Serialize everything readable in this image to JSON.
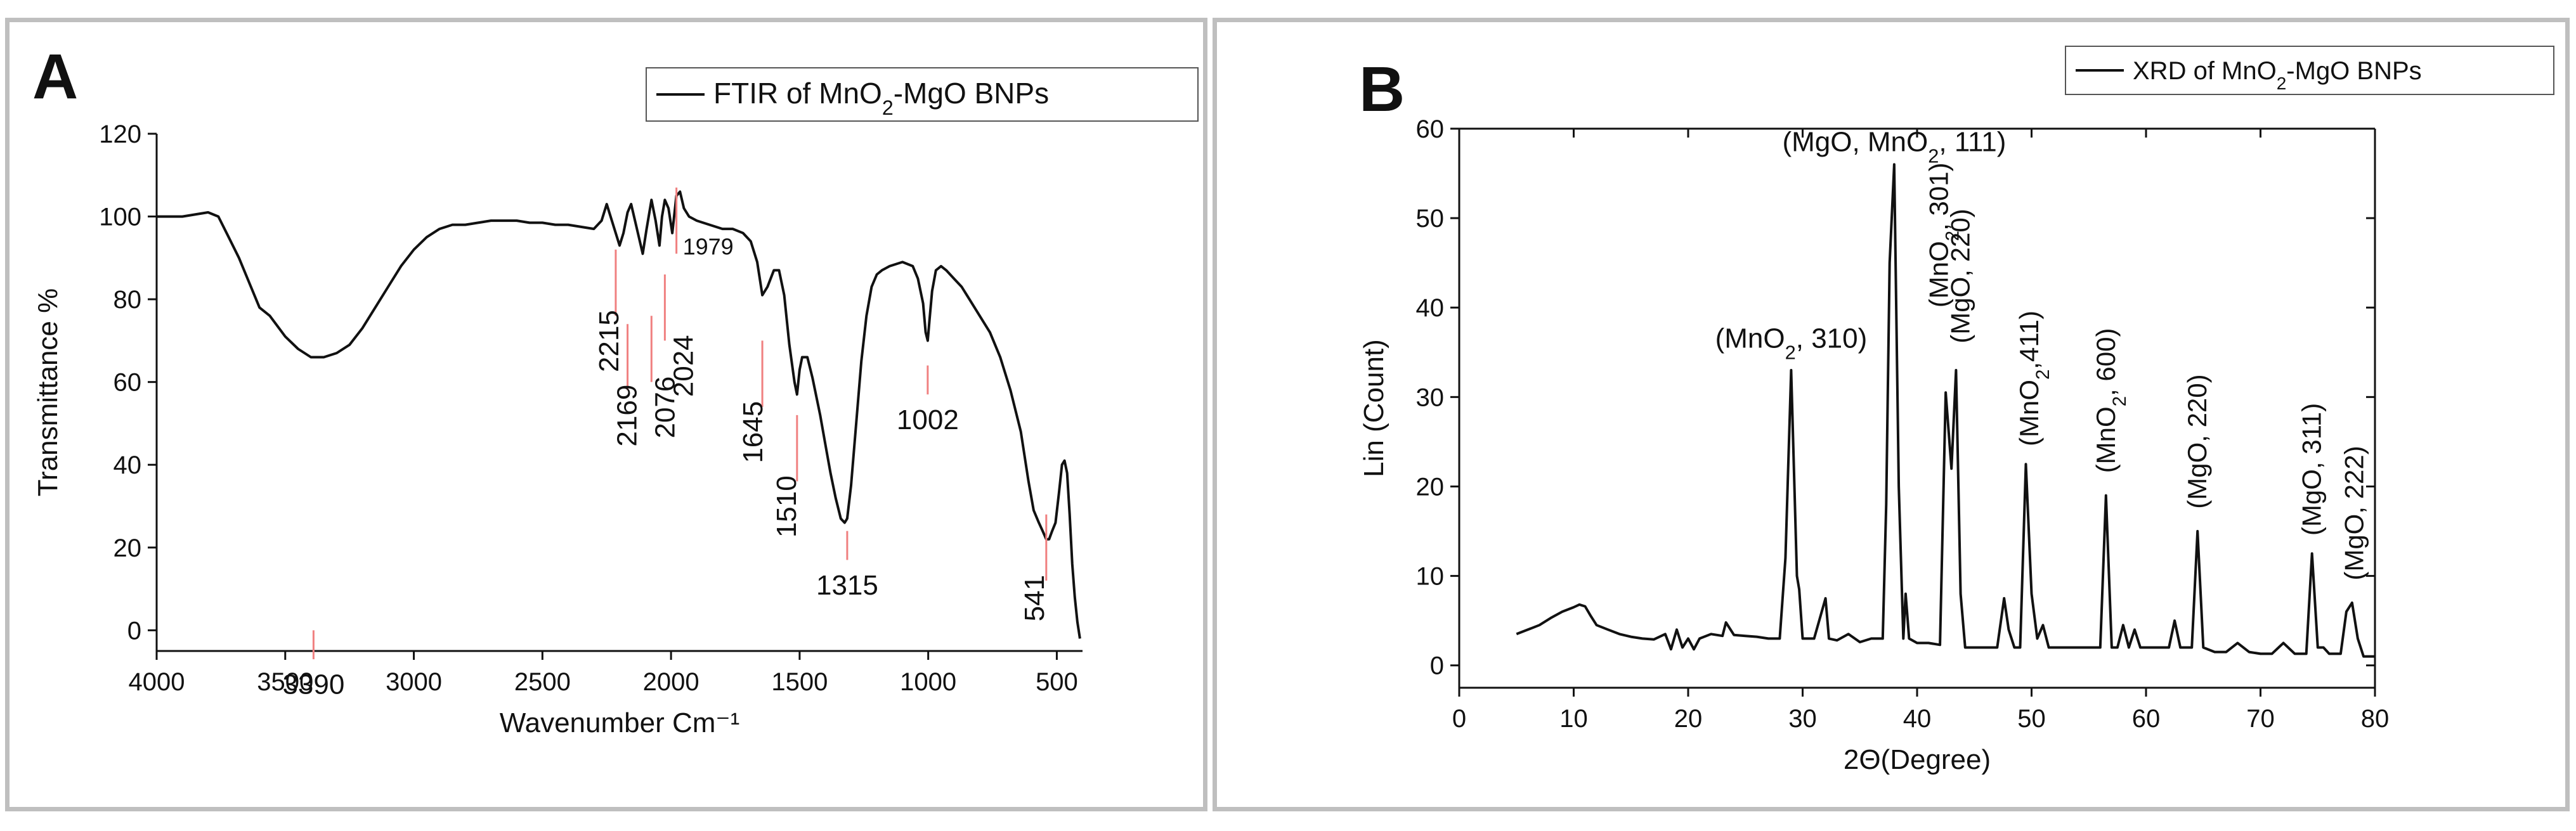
{
  "chart_data": [
    {
      "type": "line",
      "panel_label": "A",
      "title": "",
      "xlabel": "Wavenumber Cm⁻¹",
      "ylabel": "Transmittance %",
      "legend": {
        "label": "FTIR of MnO₂-MgO BNPs",
        "position": "top-right"
      },
      "xlim": [
        4000,
        400
      ],
      "ylim": [
        -5,
        120
      ],
      "x_ticks": [
        4000,
        3500,
        3000,
        2500,
        2000,
        1500,
        1000,
        500
      ],
      "x_tick_labels": [
        "4000",
        "3500",
        "3000",
        "2500",
        "2000",
        "1500",
        "1000",
        "500"
      ],
      "y_ticks": [
        0,
        20,
        40,
        60,
        80,
        100,
        120
      ],
      "y_tick_labels": [
        "0",
        "20",
        "40",
        "60",
        "80",
        "100",
        "120"
      ],
      "series": [
        {
          "name": "FTIR of MnO₂-MgO BNPs",
          "color": "#111111",
          "x": [
            4000,
            3900,
            3800,
            3760,
            3720,
            3680,
            3640,
            3600,
            3560,
            3500,
            3450,
            3400,
            3390,
            3350,
            3300,
            3250,
            3200,
            3150,
            3100,
            3050,
            3000,
            2950,
            2900,
            2850,
            2800,
            2750,
            2700,
            2650,
            2600,
            2550,
            2500,
            2450,
            2400,
            2350,
            2300,
            2270,
            2250,
            2235,
            2215,
            2200,
            2185,
            2169,
            2155,
            2140,
            2125,
            2110,
            2095,
            2076,
            2060,
            2045,
            2035,
            2024,
            2010,
            1995,
            1979,
            1965,
            1950,
            1930,
            1900,
            1850,
            1800,
            1760,
            1720,
            1690,
            1665,
            1645,
            1625,
            1600,
            1580,
            1560,
            1540,
            1520,
            1510,
            1500,
            1490,
            1470,
            1450,
            1420,
            1400,
            1380,
            1360,
            1340,
            1325,
            1315,
            1300,
            1280,
            1260,
            1240,
            1220,
            1200,
            1180,
            1150,
            1100,
            1060,
            1040,
            1020,
            1010,
            1002,
            995,
            985,
            970,
            950,
            930,
            900,
            870,
            840,
            800,
            760,
            720,
            680,
            640,
            610,
            590,
            570,
            555,
            541,
            530,
            518,
            505,
            492,
            480,
            470,
            460,
            450,
            440,
            430,
            420,
            410
          ],
          "y": [
            100,
            100,
            101,
            100,
            95,
            90,
            84,
            78,
            76,
            71,
            68,
            66,
            66,
            66,
            67,
            69,
            73,
            78,
            83,
            88,
            92,
            95,
            97,
            98,
            98,
            98.5,
            99,
            99,
            99,
            98.5,
            98.5,
            98,
            98,
            97.5,
            97,
            99,
            103,
            100,
            96,
            93,
            96,
            101,
            103,
            99,
            95,
            91,
            97,
            104,
            99,
            93,
            100,
            104,
            102,
            96,
            105,
            106,
            102,
            100,
            99,
            98,
            97,
            97,
            96,
            94,
            89,
            81,
            83,
            87,
            87,
            81,
            69,
            60,
            57,
            63,
            66,
            66,
            61,
            52,
            45,
            38,
            32,
            27,
            26,
            27,
            35,
            50,
            65,
            76,
            83,
            86,
            87,
            88,
            89,
            88,
            85,
            79,
            72,
            70,
            75,
            82,
            87,
            88,
            87,
            85,
            83,
            80,
            76,
            72,
            66,
            58,
            48,
            36,
            29,
            26,
            24,
            22,
            22,
            24,
            26,
            33,
            40,
            41,
            38,
            28,
            16,
            8,
            2,
            -2
          ]
        }
      ],
      "annotations": [
        {
          "label": "3390",
          "x": 3390
        },
        {
          "label": "2215",
          "x": 2215
        },
        {
          "label": "2169",
          "x": 2169
        },
        {
          "label": "2076",
          "x": 2076
        },
        {
          "label": "2024",
          "x": 2024
        },
        {
          "label": "1979",
          "x": 1979
        },
        {
          "label": "1645",
          "x": 1645
        },
        {
          "label": "1510",
          "x": 1510
        },
        {
          "label": "1315",
          "x": 1315
        },
        {
          "label": "1002",
          "x": 1002
        },
        {
          "label": "541",
          "x": 541
        }
      ]
    },
    {
      "type": "line",
      "panel_label": "B",
      "title": "",
      "xlabel": "2Θ(Degree)",
      "ylabel": "Lin (Count)",
      "legend": {
        "label": "XRD of MnO₂-MgO BNPs",
        "position": "top-right"
      },
      "xlim": [
        0,
        80
      ],
      "ylim": [
        -2.5,
        60
      ],
      "x_ticks": [
        0,
        10,
        20,
        30,
        40,
        50,
        60,
        70,
        80
      ],
      "x_tick_labels": [
        "0",
        "10",
        "20",
        "30",
        "40",
        "50",
        "60",
        "70",
        "80"
      ],
      "y_ticks": [
        0,
        10,
        20,
        30,
        40,
        50,
        60
      ],
      "y_tick_labels": [
        "0",
        "10",
        "20",
        "30",
        "40",
        "50",
        "60"
      ],
      "series": [
        {
          "name": "XRD of MnO₂-MgO BNPs",
          "color": "#111111",
          "x": [
            5,
            6,
            7,
            8,
            9,
            10,
            10.5,
            11,
            11.5,
            12,
            13,
            14,
            15,
            16,
            17,
            18,
            18.5,
            19,
            19.5,
            20,
            20.5,
            21,
            22,
            23,
            23.3,
            24,
            25,
            26,
            27,
            28,
            28.5,
            29,
            29.5,
            29.7,
            30,
            31,
            32,
            32.3,
            33,
            34,
            35,
            36,
            37,
            37.3,
            37.6,
            38,
            38.4,
            38.8,
            39,
            39.3,
            40,
            41,
            42,
            42.5,
            43,
            43.4,
            43.8,
            44.2,
            45,
            46,
            47,
            47.6,
            48,
            48.5,
            49,
            49.5,
            50,
            50.5,
            51,
            51.5,
            52,
            53,
            54,
            55,
            56,
            56.5,
            57,
            57.5,
            58,
            58.5,
            59,
            59.5,
            60,
            61,
            62,
            62.5,
            63,
            64,
            64.5,
            65,
            66,
            67,
            68,
            69,
            70,
            71,
            72,
            73,
            74,
            74.5,
            75,
            75.5,
            76,
            77,
            77.5,
            78,
            78.5,
            79,
            80
          ],
          "y": [
            3.5,
            4,
            4.5,
            5.3,
            6,
            6.5,
            6.8,
            6.6,
            5.5,
            4.5,
            4,
            3.5,
            3.2,
            3,
            2.9,
            3.5,
            1.8,
            4,
            2,
            3,
            1.8,
            3,
            3.5,
            3.3,
            4.8,
            3.4,
            3.3,
            3.2,
            3,
            3,
            12,
            33,
            10,
            8.5,
            3,
            3,
            7.5,
            3,
            2.8,
            3.5,
            2.6,
            3,
            3,
            18,
            45,
            56,
            20,
            3,
            8,
            3,
            2.5,
            2.5,
            2.3,
            30.5,
            22,
            33,
            8,
            2,
            2,
            2,
            2,
            7.5,
            4,
            2,
            2,
            22.5,
            8,
            3,
            4.5,
            2,
            2,
            2,
            2,
            2,
            2,
            19,
            2,
            2,
            4.5,
            2,
            4,
            2,
            2,
            2,
            2,
            5,
            2,
            2,
            15,
            2,
            1.5,
            1.5,
            2.5,
            1.5,
            1.3,
            1.3,
            2.5,
            1.3,
            1.3,
            12.5,
            2,
            2,
            1.3,
            1.3,
            6,
            7,
            3,
            1,
            1
          ]
        }
      ],
      "annotations": [
        {
          "label": "(MnO₂, 310)",
          "x": 29
        },
        {
          "label": "(MgO, MnO₂,  111)",
          "x": 38
        },
        {
          "label": "(MnO₂, 301)",
          "x": 42.5
        },
        {
          "label": "(MgO,  220)",
          "x": 43.5
        },
        {
          "label": "(MnO₂,411)",
          "x": 49.8
        },
        {
          "label": "(MnO₂, 600)",
          "x": 56.5
        },
        {
          "label": "(MgO, 220)",
          "x": 64.5
        },
        {
          "label": "(MgO, 311)",
          "x": 74.5
        },
        {
          "label": "(MgO, 222)",
          "x": 78
        }
      ]
    }
  ]
}
